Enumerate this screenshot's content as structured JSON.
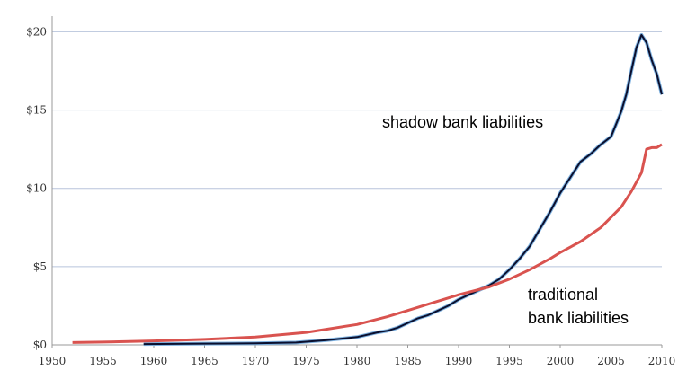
{
  "chart_data": {
    "type": "line",
    "title": "",
    "xlabel": "",
    "ylabel": "",
    "xlim": [
      1950,
      2010
    ],
    "ylim": [
      0,
      21
    ],
    "grid": "horizontal",
    "legend": "none",
    "x_ticks": [
      "1950",
      "1955",
      "1960",
      "1965",
      "1970",
      "1975",
      "1980",
      "1985",
      "1990",
      "1995",
      "2000",
      "2005",
      "2010"
    ],
    "y_ticks": [
      {
        "value": 0,
        "label": "$0"
      },
      {
        "value": 5,
        "label": "$5"
      },
      {
        "value": 10,
        "label": "$10"
      },
      {
        "value": 15,
        "label": "$15"
      },
      {
        "value": 20,
        "label": "$20"
      }
    ],
    "colors": {
      "shadow": "#0a0f2e",
      "shadow_halo": "#7fb2e0",
      "traditional": "#d9534f",
      "grid": "#b8c4dc",
      "axis": "#999999"
    },
    "annotations": {
      "shadow": "shadow bank liabilities",
      "traditional_line1": "traditional",
      "traditional_line2": "bank liabilities"
    },
    "series": [
      {
        "key": "shadow",
        "x": [
          1959,
          1965,
          1970,
          1974,
          1977,
          1980,
          1982,
          1983,
          1984,
          1985,
          1986,
          1987,
          1988,
          1989,
          1990,
          1991,
          1992,
          1993,
          1994,
          1995,
          1996,
          1997,
          1998,
          1999,
          2000,
          2001,
          2002,
          2003,
          2004,
          2005,
          2006,
          2006.5,
          2007,
          2007.5,
          2008,
          2008.5,
          2009,
          2009.5,
          2010
        ],
        "values": [
          0.05,
          0.08,
          0.1,
          0.15,
          0.3,
          0.5,
          0.8,
          0.9,
          1.1,
          1.4,
          1.7,
          1.9,
          2.2,
          2.5,
          2.9,
          3.2,
          3.5,
          3.8,
          4.2,
          4.8,
          5.5,
          6.3,
          7.4,
          8.5,
          9.7,
          10.7,
          11.7,
          12.2,
          12.8,
          13.3,
          14.9,
          16.0,
          17.5,
          19.0,
          19.8,
          19.3,
          18.2,
          17.3,
          16.0
        ]
      },
      {
        "key": "traditional",
        "x": [
          1952,
          1955,
          1960,
          1965,
          1970,
          1975,
          1980,
          1983,
          1985,
          1987,
          1990,
          1993,
          1995,
          1997,
          1999,
          2000,
          2002,
          2004,
          2006,
          2007,
          2008,
          2008.5,
          2009,
          2009.5,
          2010
        ],
        "values": [
          0.15,
          0.18,
          0.25,
          0.35,
          0.5,
          0.8,
          1.3,
          1.8,
          2.2,
          2.6,
          3.2,
          3.7,
          4.2,
          4.8,
          5.5,
          5.9,
          6.6,
          7.5,
          8.8,
          9.8,
          11.0,
          12.5,
          12.6,
          12.6,
          12.8
        ]
      }
    ]
  }
}
